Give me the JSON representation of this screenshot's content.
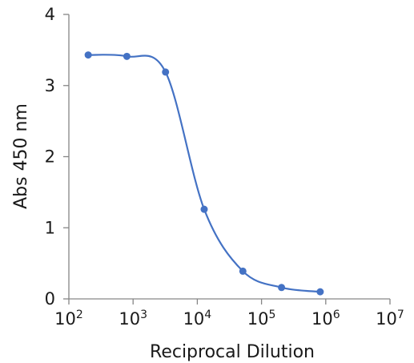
{
  "chart_data": {
    "type": "scatter",
    "title": "",
    "xlabel": "Reciprocal Dilution",
    "ylabel": "Abs 450 nm",
    "xscale": "log",
    "xlim": [
      100,
      10000000
    ],
    "ylim": [
      0,
      4
    ],
    "x_ticks": [
      {
        "base": "10",
        "exp": "2"
      },
      {
        "base": "10",
        "exp": "3"
      },
      {
        "base": "10",
        "exp": "4"
      },
      {
        "base": "10",
        "exp": "5"
      },
      {
        "base": "10",
        "exp": "6"
      },
      {
        "base": "10",
        "exp": "7"
      }
    ],
    "y_ticks": [
      "0",
      "1",
      "2",
      "3",
      "4"
    ],
    "grid": false,
    "legend": "none",
    "color": "#4472c4",
    "curve": "smooth",
    "series": [
      {
        "x": [
          200,
          800,
          3200,
          12800,
          51200,
          204800,
          819200
        ],
        "y": [
          3.43,
          3.41,
          3.19,
          1.26,
          0.39,
          0.16,
          0.1
        ]
      }
    ]
  }
}
